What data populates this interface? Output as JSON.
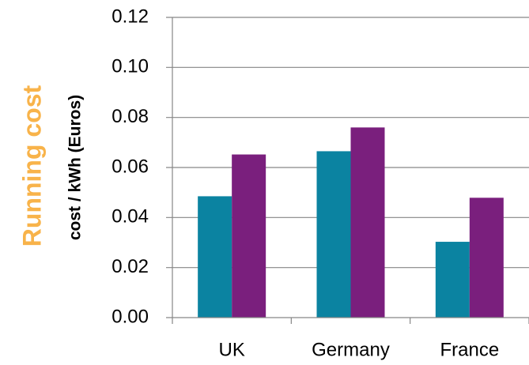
{
  "side_title": "Running cost",
  "colors": {
    "side_title": "#F8B34A",
    "series": [
      "#0B83A1",
      "#7A1F7D"
    ],
    "axis": "#868686",
    "grid": "#868686"
  },
  "chart_data": {
    "type": "bar",
    "title": "",
    "xlabel": "",
    "ylabel": "cost / kWh (Euros)",
    "ylim": [
      0,
      0.12
    ],
    "yticks": [
      "0.00",
      "0.02",
      "0.04",
      "0.06",
      "0.08",
      "0.10",
      "0.12"
    ],
    "grid": true,
    "legend": "none",
    "categories": [
      "UK",
      "Germany",
      "France"
    ],
    "series": [
      {
        "values": [
          0.0485,
          0.0665,
          0.0303
        ]
      },
      {
        "values": [
          0.0652,
          0.076,
          0.0479
        ]
      }
    ]
  }
}
